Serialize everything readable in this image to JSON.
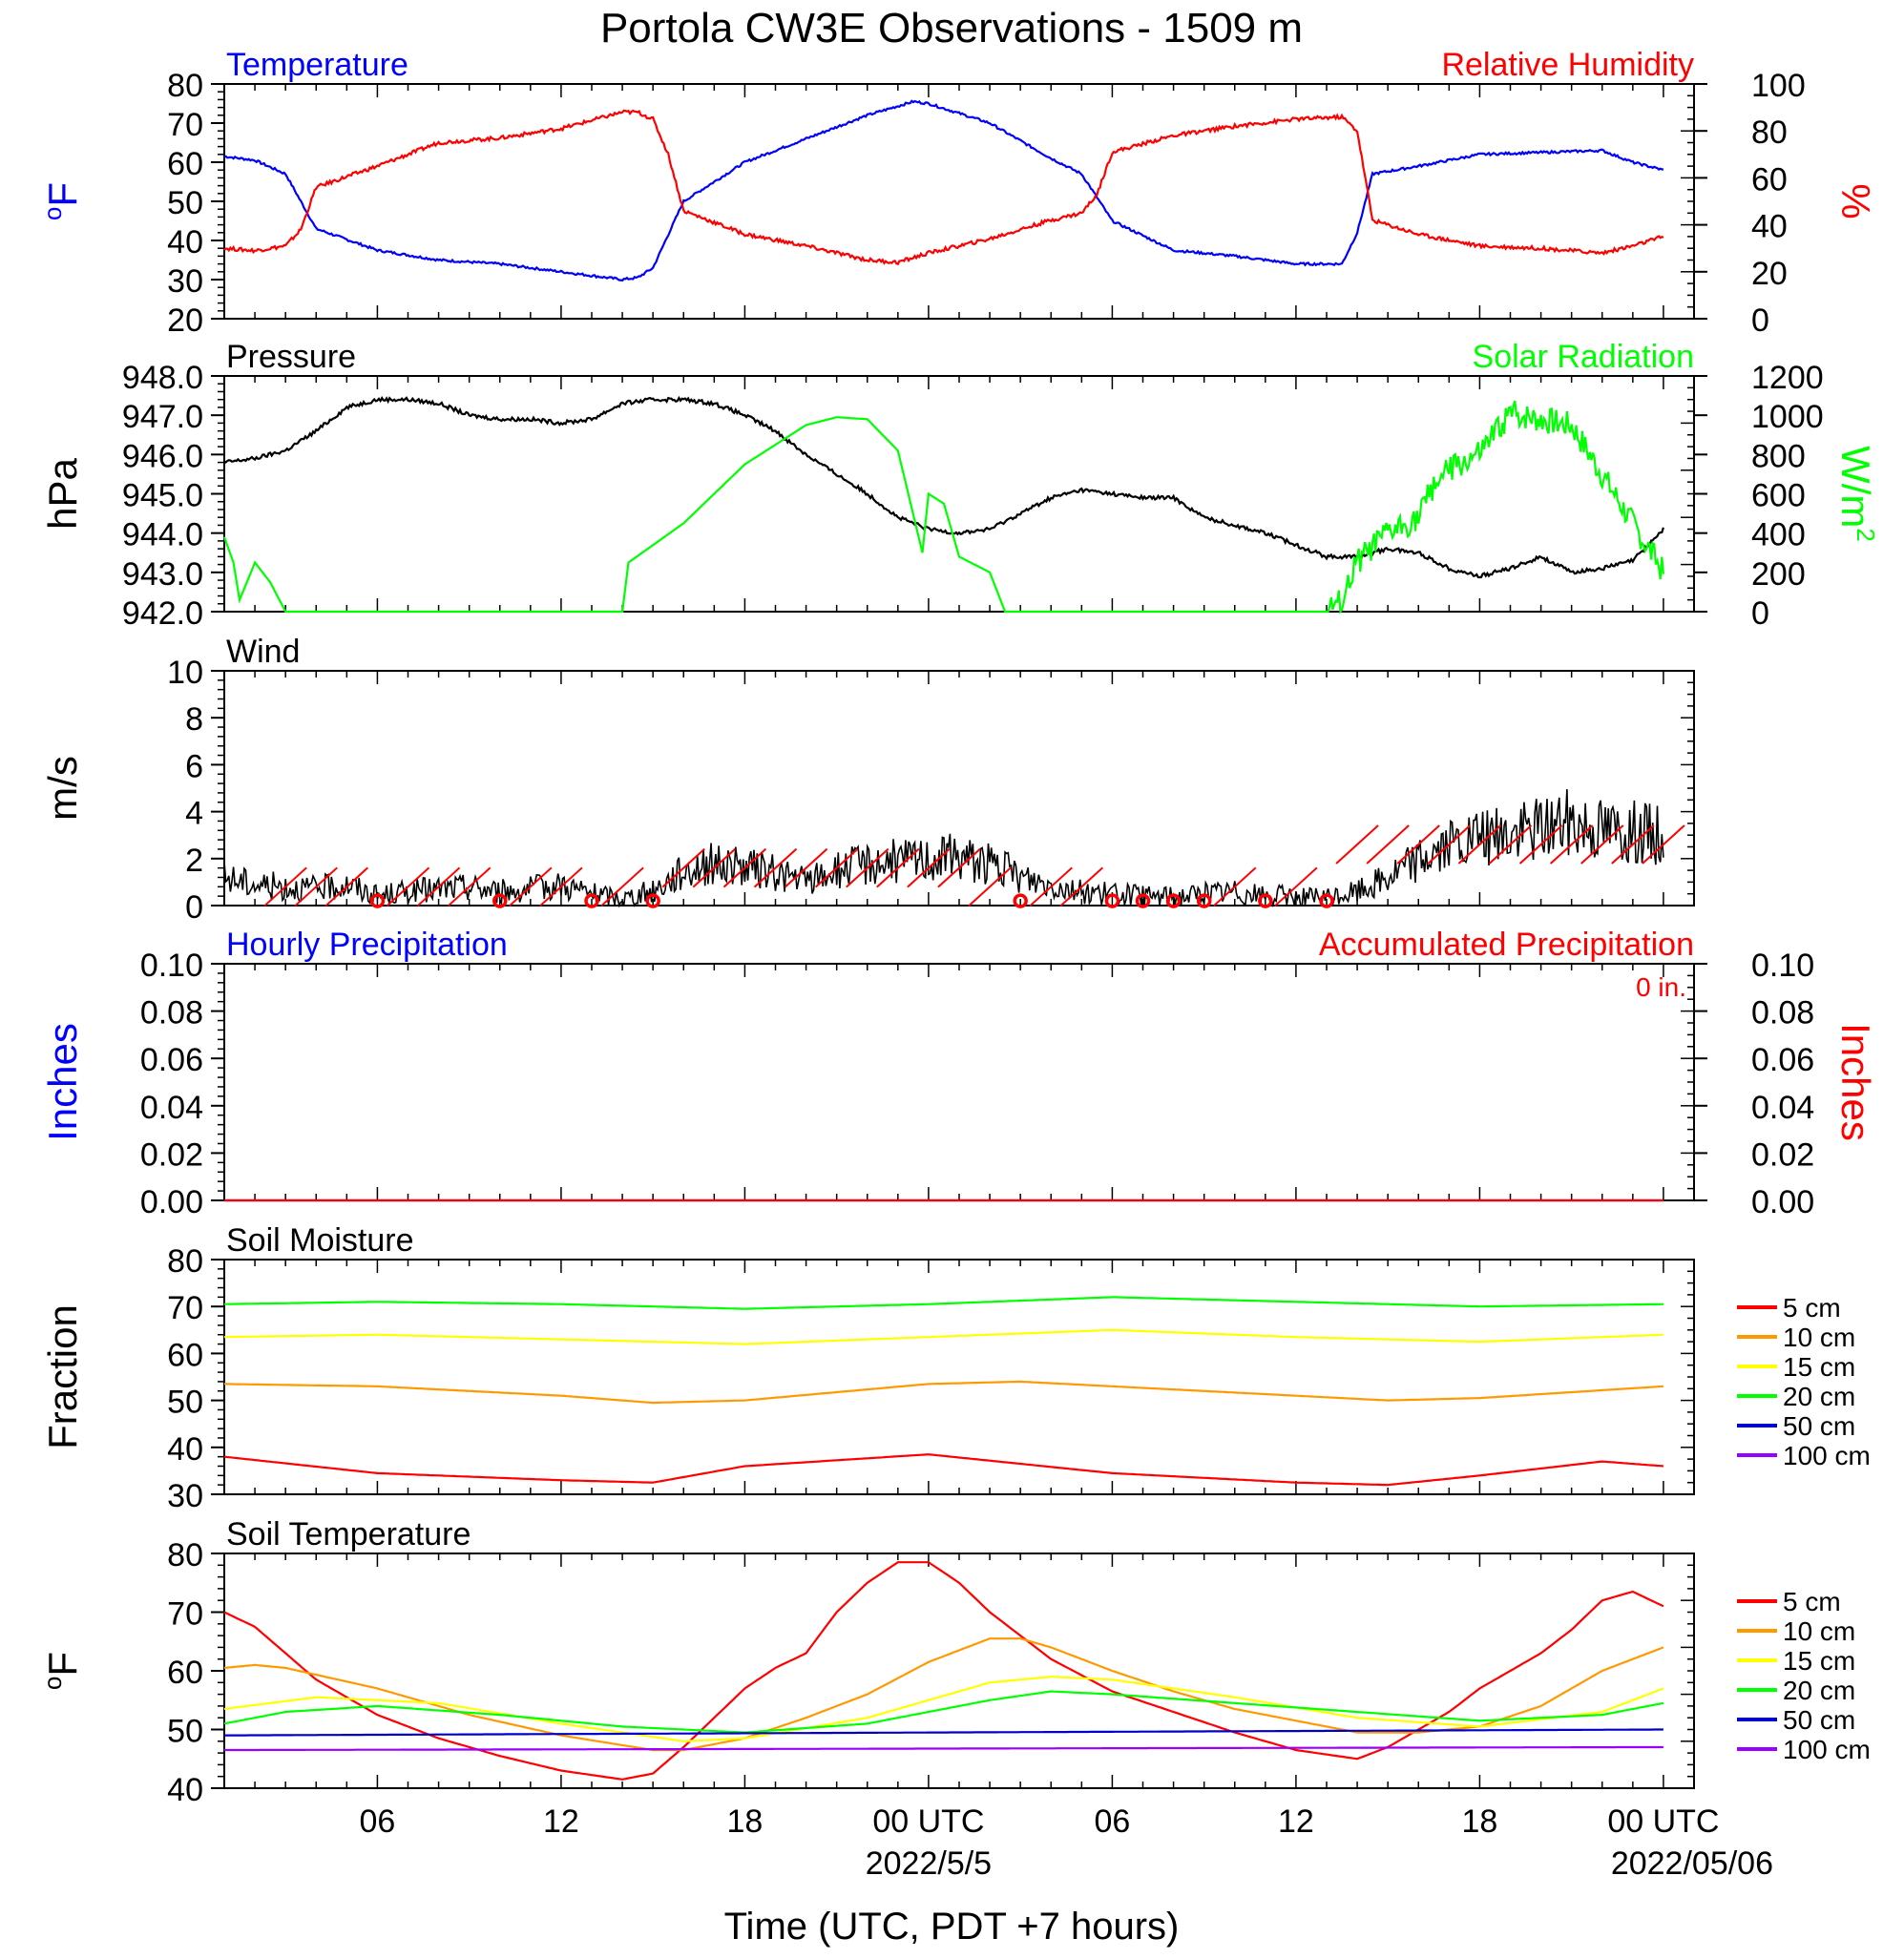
{
  "title": "Portola CW3E Observations - 1509 m",
  "xlabel": "Time (UTC, PDT +7 hours)",
  "x_ticks": [
    {
      "hour": 6,
      "label": "06",
      "sub": ""
    },
    {
      "hour": 12,
      "label": "12",
      "sub": ""
    },
    {
      "hour": 18,
      "label": "18",
      "sub": ""
    },
    {
      "hour": 24,
      "label": "00 UTC",
      "sub": "2022/5/5"
    },
    {
      "hour": 30,
      "label": "06",
      "sub": ""
    },
    {
      "hour": 36,
      "label": "12",
      "sub": ""
    },
    {
      "hour": 42,
      "label": "18",
      "sub": ""
    },
    {
      "hour": 48,
      "label": "00 UTC",
      "sub": "2022/05/06"
    }
  ],
  "colors": {
    "blue": "#0000ff",
    "red": "#ff0000",
    "green": "#00ff00",
    "black": "#000000",
    "orange": "#ff9900",
    "yellow": "#ffff00",
    "navy": "#0000cc",
    "purple": "#9900ff"
  },
  "chart_data": [
    {
      "type": "line",
      "panel": "temperature_humidity",
      "left_title": "Temperature",
      "right_title": "Relative Humidity",
      "ylabel_left": "oF",
      "ylabel_right": "%",
      "ylim_left": [
        20,
        80
      ],
      "yticks_left": [
        20,
        30,
        40,
        50,
        60,
        70,
        80
      ],
      "ylim_right": [
        0,
        100
      ],
      "yticks_right": [
        0,
        20,
        40,
        60,
        80,
        100
      ],
      "series": [
        {
          "name": "Temperature",
          "axis": "left",
          "color": "blue",
          "x": [
            1,
            2,
            3,
            4,
            6,
            8,
            10,
            12,
            14,
            14.5,
            15,
            16,
            18,
            20,
            22,
            23.5,
            24,
            26,
            28,
            29,
            30,
            32,
            34,
            36,
            37.5,
            38,
            38.5,
            40,
            42,
            44,
            46,
            47,
            48
          ],
          "y": [
            61.5,
            60.5,
            57,
            43,
            37.5,
            35,
            34,
            32,
            30,
            30.5,
            33,
            50,
            60,
            66,
            72,
            75.5,
            75,
            70,
            61,
            57,
            45,
            37.5,
            36,
            34,
            34,
            42,
            57,
            59,
            62,
            62.5,
            63,
            60,
            58
          ]
        },
        {
          "name": "Relative Humidity",
          "axis": "right",
          "color": "red",
          "x": [
            1,
            2,
            3,
            3.5,
            4,
            6,
            8,
            10,
            12,
            14,
            14.5,
            15,
            15.5,
            16,
            18,
            20,
            22,
            23,
            24,
            26,
            28,
            29,
            29.5,
            30,
            32,
            34,
            36,
            37.5,
            38,
            38.5,
            40,
            42,
            44,
            46,
            47,
            48
          ],
          "y": [
            30,
            29,
            31,
            38,
            56,
            65,
            75,
            77,
            81,
            88,
            88,
            85,
            70,
            46,
            36,
            31,
            25,
            24,
            28,
            34,
            42,
            45,
            53,
            71,
            78,
            82,
            85,
            86,
            80,
            42,
            36,
            31,
            30,
            28,
            31,
            35
          ]
        }
      ]
    },
    {
      "type": "line",
      "panel": "pressure_solar",
      "left_title": "Pressure",
      "right_title": "Solar Radiation",
      "ylabel_left": "hPa",
      "ylabel_right": "W/m2",
      "ylim_left": [
        942,
        948
      ],
      "yticks_left": [
        "942.0",
        "943.0",
        "944.0",
        "945.0",
        "946.0",
        "947.0",
        "948.0"
      ],
      "ylim_right": [
        0,
        1200
      ],
      "yticks_right": [
        0,
        200,
        400,
        600,
        800,
        1000,
        1200
      ],
      "series": [
        {
          "name": "Pressure",
          "axis": "left",
          "color": "black",
          "x": [
            1,
            2,
            3,
            4,
            5,
            6,
            7,
            8,
            9,
            10,
            11,
            12,
            13,
            14,
            15,
            16,
            17,
            18,
            19,
            20,
            21,
            22,
            23,
            24,
            25,
            26,
            27,
            28,
            29,
            30,
            31,
            32,
            33,
            34,
            35,
            36,
            37,
            38,
            39,
            40,
            41,
            42,
            43,
            44,
            45,
            46,
            47,
            48
          ],
          "y": [
            945.8,
            945.9,
            946.1,
            946.6,
            947.2,
            947.4,
            947.4,
            947.3,
            947.0,
            946.9,
            946.9,
            946.8,
            946.9,
            947.3,
            947.4,
            947.4,
            947.3,
            947.0,
            946.6,
            946.0,
            945.5,
            945.0,
            944.4,
            944.1,
            944.0,
            944.1,
            944.5,
            944.9,
            945.1,
            945.0,
            944.9,
            944.9,
            944.4,
            944.2,
            944.0,
            943.7,
            943.4,
            943.4,
            943.6,
            943.5,
            943.1,
            942.9,
            943.1,
            943.4,
            943.0,
            943.1,
            943.3,
            944.1
          ]
        },
        {
          "name": "Solar Radiation",
          "axis": "right",
          "color": "green",
          "x": [
            1,
            1.3,
            1.5,
            2,
            2.5,
            3,
            14,
            14.2,
            16,
            18,
            20,
            21,
            22,
            23,
            23.8,
            24,
            24.5,
            25,
            26,
            26.5,
            27,
            28,
            37,
            37.5,
            38,
            39,
            40,
            40.5,
            41,
            42,
            43,
            44,
            45,
            46,
            47,
            48
          ],
          "y": [
            380,
            250,
            60,
            250,
            150,
            0,
            0,
            250,
            450,
            750,
            950,
            990,
            980,
            820,
            300,
            600,
            550,
            280,
            200,
            0,
            0,
            0,
            0,
            50,
            250,
            400,
            480,
            650,
            720,
            800,
            1010,
            980,
            950,
            700,
            450,
            200
          ]
        }
      ]
    },
    {
      "type": "line",
      "panel": "wind",
      "left_title": "Wind",
      "ylabel_left": "m/s",
      "ylim_left": [
        0,
        10
      ],
      "yticks_left": [
        0,
        2,
        4,
        6,
        8,
        10
      ],
      "series": [
        {
          "name": "Wind",
          "color": "black",
          "x": [
            1,
            2,
            3,
            4,
            5,
            6,
            7,
            8,
            9,
            10,
            11,
            12,
            13,
            14,
            15,
            16,
            17,
            18,
            19,
            20,
            21,
            22,
            23,
            24,
            25,
            26,
            27,
            28,
            29,
            30,
            31,
            32,
            33,
            34,
            35,
            36,
            37,
            38,
            39,
            40,
            41,
            42,
            43,
            44,
            45,
            46,
            47,
            48
          ],
          "y": [
            1.2,
            0.9,
            0.8,
            0.7,
            0.9,
            0.4,
            0.6,
            0.7,
            0.8,
            0.6,
            0.7,
            0.9,
            0.5,
            0.3,
            0.6,
            1.5,
            1.8,
            1.6,
            1.4,
            1.0,
            1.5,
            1.8,
            1.9,
            2.0,
            2.1,
            1.8,
            1.2,
            0.9,
            0.6,
            0.5,
            0.4,
            0.4,
            0.5,
            0.6,
            0.4,
            0.4,
            0.3,
            0.6,
            1.2,
            2.0,
            2.5,
            2.8,
            3.0,
            3.4,
            3.6,
            3.3,
            3.2,
            3.0
          ]
        }
      ]
    },
    {
      "type": "line",
      "panel": "precipitation",
      "left_title": "Hourly Precipitation",
      "right_title": "Accumulated Precipitation",
      "annotation": "0 in.",
      "ylabel_left": "Inches",
      "ylabel_right": "Inches",
      "ylim_left": [
        0,
        0.1
      ],
      "yticks_left": [
        "0.00",
        "0.02",
        "0.04",
        "0.06",
        "0.08",
        "0.10"
      ],
      "ylim_right": [
        0,
        0.1
      ],
      "yticks_right": [
        "0.00",
        "0.02",
        "0.04",
        "0.06",
        "0.08",
        "0.10"
      ],
      "series": [
        {
          "name": "Hourly Precipitation",
          "color": "blue",
          "x": [
            1,
            48
          ],
          "y": [
            0,
            0
          ]
        },
        {
          "name": "Accumulated Precipitation",
          "color": "red",
          "x": [
            1,
            48
          ],
          "y": [
            0,
            0
          ]
        }
      ]
    },
    {
      "type": "line",
      "panel": "soil_moisture",
      "left_title": "Soil Moisture",
      "ylabel_left": "Fraction",
      "ylim_left": [
        30,
        80
      ],
      "yticks_left": [
        30,
        40,
        50,
        60,
        70,
        80
      ],
      "legend": [
        "5 cm",
        "10 cm",
        "15 cm",
        "20 cm",
        "50 cm",
        "100 cm"
      ],
      "series": [
        {
          "name": "5 cm",
          "color": "red",
          "x": [
            1,
            6,
            12,
            15,
            18,
            24,
            30,
            36,
            39,
            42,
            46,
            48
          ],
          "y": [
            38,
            34.5,
            33,
            32.5,
            36,
            38.5,
            34.5,
            32.5,
            32,
            34,
            37,
            36
          ]
        },
        {
          "name": "10 cm",
          "color": "orange",
          "x": [
            1,
            6,
            12,
            15,
            18,
            24,
            27,
            30,
            36,
            39,
            42,
            48
          ],
          "y": [
            53.5,
            53,
            51,
            49.5,
            50,
            53.5,
            54,
            53,
            51,
            50,
            50.5,
            53
          ]
        },
        {
          "name": "15 cm",
          "color": "yellow",
          "x": [
            1,
            6,
            12,
            18,
            24,
            30,
            36,
            42,
            48
          ],
          "y": [
            63.5,
            64,
            63,
            62,
            63.5,
            65,
            63.5,
            62.5,
            64
          ]
        },
        {
          "name": "20 cm",
          "color": "green",
          "x": [
            1,
            6,
            12,
            18,
            24,
            30,
            36,
            42,
            48
          ],
          "y": [
            70.5,
            71,
            70.5,
            69.5,
            70.5,
            72,
            71,
            70,
            70.5
          ]
        }
      ]
    },
    {
      "type": "line",
      "panel": "soil_temperature",
      "left_title": "Soil Temperature",
      "ylabel_left": "oF",
      "ylim_left": [
        40,
        80
      ],
      "yticks_left": [
        40,
        50,
        60,
        70,
        80
      ],
      "legend": [
        "5 cm",
        "10 cm",
        "15 cm",
        "20 cm",
        "50 cm",
        "100 cm"
      ],
      "series": [
        {
          "name": "5 cm",
          "color": "red",
          "x": [
            1,
            2,
            3,
            4,
            6,
            8,
            10,
            12,
            14,
            15,
            16,
            17,
            18,
            19,
            20,
            21,
            22,
            23,
            24,
            25,
            26,
            28,
            30,
            32,
            34,
            36,
            38,
            39,
            40,
            41,
            42,
            43,
            44,
            45,
            46,
            47,
            48
          ],
          "y": [
            70,
            67.5,
            63,
            58.5,
            52.5,
            48.5,
            45.5,
            43,
            41.5,
            42.5,
            47,
            52,
            57,
            60.5,
            63,
            70,
            75,
            78.5,
            78.5,
            75,
            70,
            62,
            56.5,
            53,
            49.5,
            46.5,
            45,
            47,
            50,
            53,
            57,
            60,
            63,
            67,
            72,
            73.5,
            71
          ]
        },
        {
          "name": "10 cm",
          "color": "orange",
          "x": [
            1,
            2,
            3,
            6,
            9,
            12,
            15,
            16,
            18,
            20,
            22,
            24,
            26,
            27,
            28,
            30,
            32,
            34,
            36,
            38,
            40,
            42,
            44,
            46,
            48
          ],
          "y": [
            60.5,
            61,
            60.5,
            57,
            52.5,
            49,
            46.5,
            46.5,
            48.5,
            52,
            56,
            61.5,
            65.5,
            65.5,
            64,
            60,
            56.5,
            53.5,
            51.5,
            49.5,
            49.5,
            50.5,
            54,
            60,
            64
          ]
        },
        {
          "name": "15 cm",
          "color": "yellow",
          "x": [
            1,
            4,
            8,
            12,
            16,
            18,
            22,
            26,
            28,
            30,
            34,
            38,
            42,
            46,
            48
          ],
          "y": [
            53.5,
            55.5,
            54.5,
            51,
            48,
            48.5,
            52,
            58,
            59,
            58.5,
            55.5,
            52,
            50.5,
            53,
            57
          ]
        },
        {
          "name": "20 cm",
          "color": "green",
          "x": [
            1,
            3,
            6,
            10,
            14,
            18,
            22,
            26,
            28,
            30,
            34,
            38,
            42,
            46,
            48
          ],
          "y": [
            51,
            53,
            54,
            52.5,
            50.5,
            49.5,
            51,
            55,
            56.5,
            56,
            54.5,
            53,
            51.5,
            52.5,
            54.5
          ]
        },
        {
          "name": "50 cm",
          "color": "navy",
          "x": [
            1,
            48
          ],
          "y": [
            49,
            50
          ]
        },
        {
          "name": "100 cm",
          "color": "purple",
          "x": [
            1,
            48
          ],
          "y": [
            46.5,
            47
          ]
        }
      ]
    }
  ]
}
